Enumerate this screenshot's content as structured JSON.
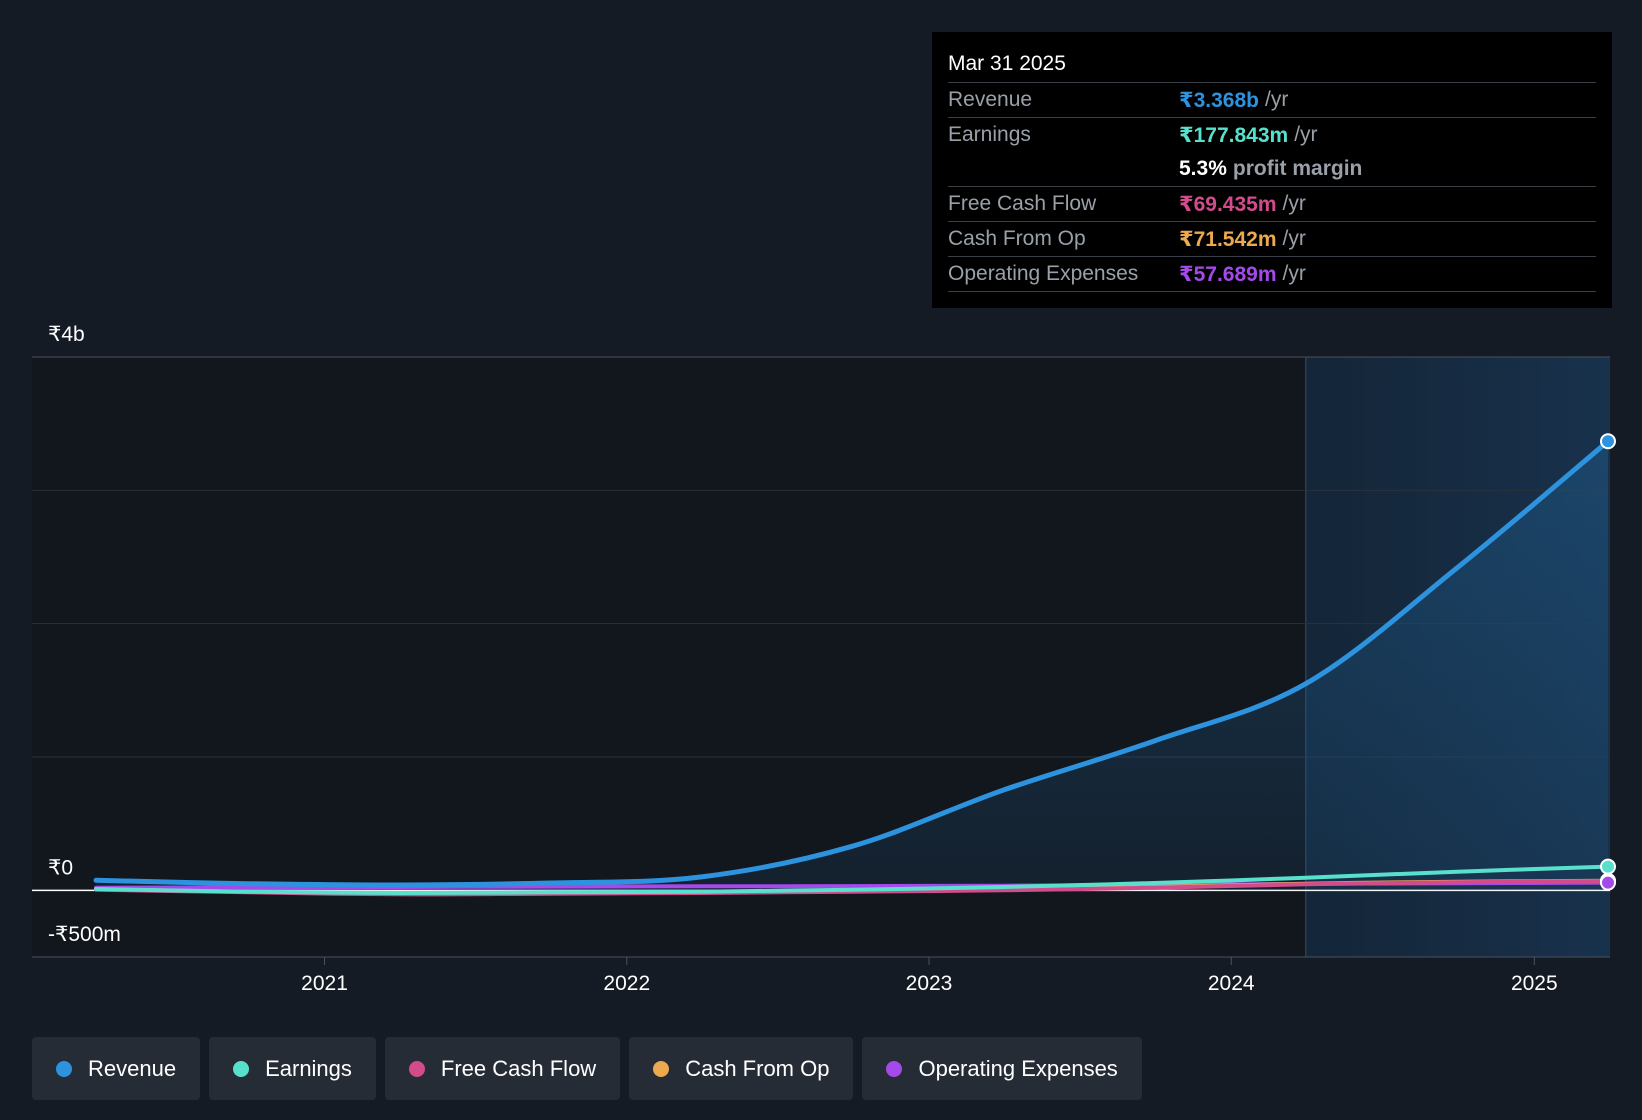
{
  "tooltip": {
    "date": "Mar 31 2025",
    "rows": [
      {
        "label": "Revenue",
        "value": "₹3.368b",
        "unit": "/yr",
        "color": "#2d93de"
      },
      {
        "label": "Earnings",
        "value": "₹177.843m",
        "unit": "/yr",
        "color": "#59e0cc"
      },
      {
        "label": "",
        "value": "5.3%",
        "unit": "profit margin",
        "color": "#ffffff"
      },
      {
        "label": "Free Cash Flow",
        "value": "₹69.435m",
        "unit": "/yr",
        "color": "#d24c8c"
      },
      {
        "label": "Cash From Op",
        "value": "₹71.542m",
        "unit": "/yr",
        "color": "#eca94f"
      },
      {
        "label": "Operating Expenses",
        "value": "₹57.689m",
        "unit": "/yr",
        "color": "#a449ea"
      }
    ]
  },
  "legend": [
    {
      "label": "Revenue",
      "color": "#2d93de"
    },
    {
      "label": "Earnings",
      "color": "#59e0cc"
    },
    {
      "label": "Free Cash Flow",
      "color": "#d24c8c"
    },
    {
      "label": "Cash From Op",
      "color": "#eca94f"
    },
    {
      "label": "Operating Expenses",
      "color": "#a449ea"
    }
  ],
  "chart_data": {
    "type": "area",
    "title": "",
    "xlabel": "",
    "ylabel": "",
    "ylim": [
      -500,
      4000
    ],
    "y_unit": "₹m",
    "y_tick_labels": [
      {
        "value": 4000,
        "label": "₹4b"
      },
      {
        "value": 0,
        "label": "₹0"
      },
      {
        "value": -500,
        "label": "-₹500m"
      }
    ],
    "gridlines_y": [
      4000,
      3000,
      2000,
      1000,
      0,
      -500
    ],
    "xlim": [
      "2020-03-31",
      "2025-03-31"
    ],
    "x_ticks": [
      "2021",
      "2022",
      "2023",
      "2024",
      "2025"
    ],
    "x_tick_dates": [
      "2021-01-01",
      "2022-01-01",
      "2023-01-01",
      "2024-01-01",
      "2025-01-01"
    ],
    "forecast_shade_from": "2024-03-31",
    "grid": true,
    "legend_position": "bottom-left",
    "series": [
      {
        "name": "Revenue",
        "color": "#2d93de",
        "fill": true,
        "x": [
          "2020-03-31",
          "2020-09-30",
          "2021-03-31",
          "2021-09-30",
          "2022-03-31",
          "2022-09-30",
          "2023-03-31",
          "2023-09-30",
          "2024-03-31",
          "2024-09-30",
          "2025-03-31"
        ],
        "y": [
          75,
          50,
          40,
          55,
          100,
          330,
          750,
          1120,
          1550,
          2420,
          3368
        ]
      },
      {
        "name": "Earnings",
        "color": "#59e0cc",
        "fill": false,
        "x": [
          "2020-03-31",
          "2020-09-30",
          "2021-03-31",
          "2021-09-30",
          "2022-03-31",
          "2022-09-30",
          "2023-03-31",
          "2023-09-30",
          "2024-03-31",
          "2024-09-30",
          "2025-03-31"
        ],
        "y": [
          10,
          -10,
          -20,
          -15,
          -10,
          5,
          25,
          55,
          95,
          140,
          177.843
        ]
      },
      {
        "name": "Free Cash Flow",
        "color": "#d24c8c",
        "fill": false,
        "x": [
          "2020-03-31",
          "2020-09-30",
          "2021-03-31",
          "2021-09-30",
          "2022-03-31",
          "2022-09-30",
          "2023-03-31",
          "2023-09-30",
          "2024-03-31",
          "2024-09-30",
          "2025-03-31"
        ],
        "y": [
          5,
          -15,
          -30,
          -25,
          -20,
          -10,
          0,
          20,
          45,
          60,
          69.435
        ]
      },
      {
        "name": "Cash From Op",
        "color": "#eca94f",
        "fill": false,
        "x": [
          "2020-03-31",
          "2020-09-30",
          "2021-03-31",
          "2021-09-30",
          "2022-03-31",
          "2022-09-30",
          "2023-03-31",
          "2023-09-30",
          "2024-03-31",
          "2024-09-30",
          "2025-03-31"
        ],
        "y": [
          8,
          -12,
          -25,
          -20,
          -15,
          -5,
          5,
          25,
          50,
          65,
          71.542
        ]
      },
      {
        "name": "Operating Expenses",
        "color": "#a449ea",
        "fill": false,
        "x": [
          "2020-03-31",
          "2020-09-30",
          "2021-03-31",
          "2021-09-30",
          "2022-03-31",
          "2022-09-30",
          "2023-03-31",
          "2023-09-30",
          "2024-03-31",
          "2024-09-30",
          "2025-03-31"
        ],
        "y": [
          20,
          22,
          25,
          28,
          30,
          32,
          35,
          40,
          48,
          53,
          57.689
        ]
      }
    ]
  }
}
